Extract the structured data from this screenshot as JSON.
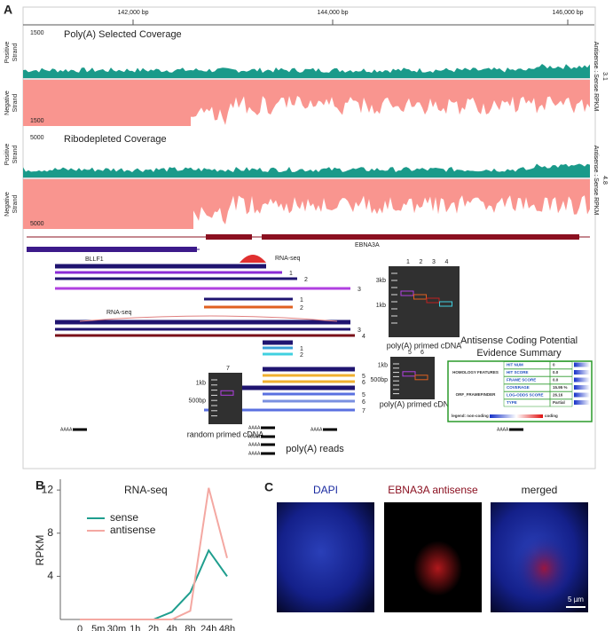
{
  "panels": {
    "a": "A",
    "b": "B",
    "c": "C"
  },
  "browser": {
    "ruler": [
      "142,000 bp",
      "144,000 bp",
      "146,000 bp"
    ],
    "strands": [
      [
        "Positive",
        "Strand"
      ],
      [
        "Negative",
        "Strand"
      ],
      [
        "Positive",
        "Strand"
      ],
      [
        "Negative",
        "Strand"
      ]
    ],
    "tracks": [
      {
        "title": "Poly(A) Selected Coverage",
        "scale_top": "1500",
        "scale_bottom": "1500",
        "ratio_label": "Antisense : Sense RPKM",
        "ratio": "3.1"
      },
      {
        "title": "Ribodepleted Coverage",
        "scale_top": "5000",
        "scale_bottom": "5000",
        "ratio_label": "Antisense : Sense RPKM",
        "ratio": "4.8"
      }
    ],
    "genes": [
      "EBNA3A",
      "BLLF1"
    ]
  },
  "transcripts": {
    "rna_seq_labels": [
      "RNA-seq",
      "RNA-seq"
    ],
    "labels": [
      "1",
      "2",
      "3",
      "1",
      "2",
      "3",
      "4",
      "1",
      "2",
      "5",
      "6",
      "5",
      "6",
      "7"
    ]
  },
  "gels": [
    {
      "lanes": [
        "1",
        "2",
        "3",
        "4"
      ],
      "markers": [
        "3kb",
        "1kb"
      ],
      "caption": "poly(A) primed cDNA"
    },
    {
      "lanes": [
        "7"
      ],
      "markers": [
        "1kb",
        "500bp"
      ],
      "caption": "random primed cDNA"
    },
    {
      "lanes": [
        "5",
        "6"
      ],
      "markers": [
        "1kb",
        "500bp"
      ],
      "caption": "poly(A) primed cDNA"
    }
  ],
  "reads": {
    "tag": "AAAA",
    "label": "poly(A) reads"
  },
  "summary": {
    "title": [
      "Antisense Coding Potential",
      "Evidence Summary"
    ],
    "groups": [
      "HOMOLOGY FEATURES",
      "ORF_FRAMEFINDER"
    ],
    "rows": [
      [
        "HIT NUM",
        "0"
      ],
      [
        "HIT SCORE",
        "0.0"
      ],
      [
        "FRAME SCORE",
        "0.0"
      ],
      [
        "COVERAGE",
        "15.95 %"
      ],
      [
        "LOG-ODDS SCORE",
        "26.16"
      ],
      [
        "TYPE",
        "Partial"
      ]
    ],
    "legend": [
      "legend: non-coding",
      "coding"
    ]
  },
  "chart_data": {
    "type": "line",
    "title": "RNA-seq",
    "y_label": "RPKM",
    "categories": [
      "0",
      "5m",
      "30m",
      "1h",
      "2h",
      "4h",
      "8h",
      "24h",
      "48h"
    ],
    "series": [
      {
        "name": "sense",
        "color": "#1f9e8e",
        "values": [
          0,
          0,
          0,
          0,
          0,
          0.7,
          2.5,
          6.4,
          4.0
        ]
      },
      {
        "name": "antisense",
        "color": "#f4a8a2",
        "values": [
          0,
          0,
          0,
          0,
          0,
          0,
          0.8,
          12.2,
          5.7
        ]
      }
    ],
    "ylim": [
      0,
      13
    ],
    "yticks": [
      4,
      8,
      12
    ]
  },
  "microscopy": {
    "labels": [
      "DAPI",
      "EBNA3A antisense",
      "merged"
    ],
    "scale": "5 µm"
  }
}
